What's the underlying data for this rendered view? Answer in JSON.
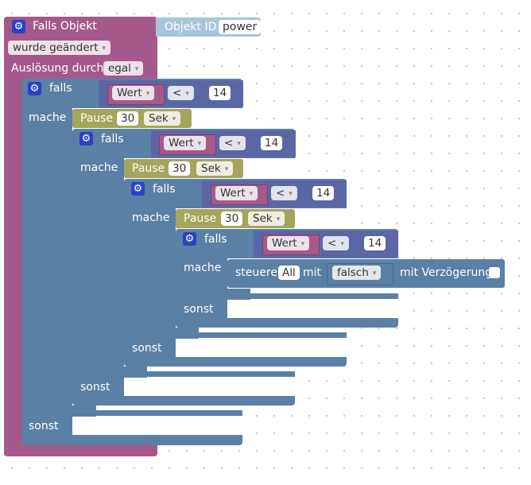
{
  "event": {
    "title": "Falls Objekt",
    "object_id_label": "Objekt ID",
    "object_id_value": "power",
    "trigger_value": "wurde geändert",
    "ausloesung_label": "Auslösung durch",
    "ausloesung_value": "egal"
  },
  "labels": {
    "falls": "falls",
    "mache": "mache",
    "sonst": "sonst"
  },
  "condition": {
    "variable": "Wert",
    "operator": "<",
    "number": "14"
  },
  "pause": {
    "label": "Pause",
    "amount": "30",
    "unit": "Sek"
  },
  "steuere": {
    "label": "steuere",
    "target": "All",
    "mit": "mit",
    "value": "falsch",
    "delay_label": "mit Verzögerung"
  },
  "icons": {
    "gear": "⚙",
    "dropdown_arrow": "▾"
  },
  "colors": {
    "event": "#a5598a",
    "logic": "#5b80a5",
    "timer": "#a5a55b",
    "compare": "#5b67a5",
    "object_id": "#a6c6dc"
  }
}
